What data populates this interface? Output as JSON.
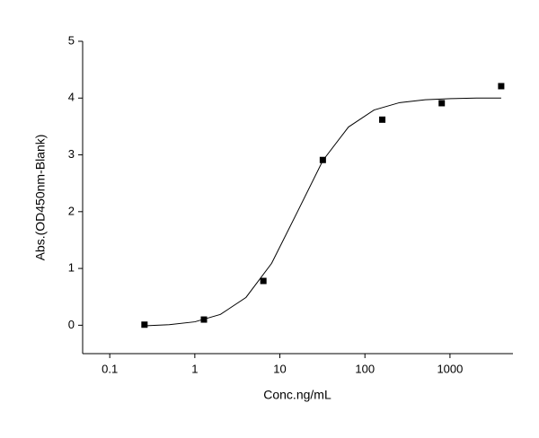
{
  "chart_data": {
    "type": "scatter",
    "x_label": "Conc.ng/mL",
    "y_label": "Abs.(OD450nm-Blank)",
    "x_scale": "log",
    "xlim": [
      0.048,
      5500
    ],
    "ylim": [
      -0.5,
      5
    ],
    "xticks": [
      0.1,
      1,
      10,
      100,
      1000
    ],
    "yticks": [
      0,
      1,
      2,
      3,
      4,
      5
    ],
    "series": [
      {
        "type": "scatter",
        "color": "#000000",
        "x": [
          0.256,
          1.28,
          6.4,
          32,
          160,
          800,
          4000
        ],
        "values": [
          0.01,
          0.1,
          0.78,
          2.91,
          3.62,
          3.91,
          4.21
        ]
      },
      {
        "type": "line",
        "color": "#000000",
        "x": [
          0.256,
          0.5,
          1,
          2,
          4,
          8,
          16,
          32,
          64,
          128,
          256,
          512,
          1024,
          2048,
          4000
        ],
        "values": [
          -0.01,
          0.01,
          0.06,
          0.19,
          0.49,
          1.09,
          1.99,
          2.9,
          3.49,
          3.79,
          3.92,
          3.97,
          3.99,
          4.0,
          4.0
        ]
      }
    ]
  }
}
